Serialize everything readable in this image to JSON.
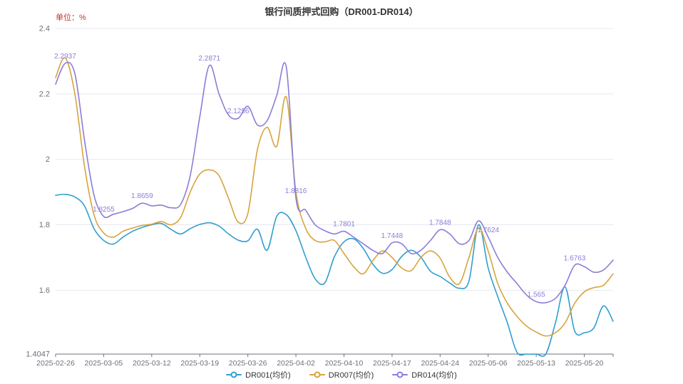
{
  "header": {
    "title": "银行间质押式回购（DR001-DR014）",
    "unit_label": "单位：%"
  },
  "legend": [
    {
      "label": "DR001(均价)",
      "color": "#2f9fd0"
    },
    {
      "label": "DR007(均价)",
      "color": "#d8a33e"
    },
    {
      "label": "DR014(均价)",
      "color": "#8b7dd8"
    }
  ],
  "colors": {
    "grid_line": "#e4e8f1",
    "axis_line": "#6e7079",
    "tick_label": "#6e7079",
    "annotation": "#8b7dd8",
    "title": "#333333",
    "unit": "#c23531"
  },
  "chart_data": {
    "type": "line",
    "title": "银行间质押式回购（DR001-DR014）",
    "xlabel": "",
    "ylabel": "单位：%",
    "ylim": [
      1.4047,
      2.4
    ],
    "y_ticks": [
      "1.4047",
      "1.6",
      "1.8",
      "2",
      "2.2",
      "2.4"
    ],
    "y_tick_values": [
      1.4047,
      1.6,
      1.8,
      2,
      2.2,
      2.4
    ],
    "grid": true,
    "legend_position": "bottom",
    "smooth": true,
    "x": [
      "2025-02-26",
      "2025-02-27",
      "2025-02-28",
      "2025-03-03",
      "2025-03-04",
      "2025-03-05",
      "2025-03-06",
      "2025-03-07",
      "2025-03-10",
      "2025-03-11",
      "2025-03-12",
      "2025-03-13",
      "2025-03-14",
      "2025-03-17",
      "2025-03-18",
      "2025-03-19",
      "2025-03-20",
      "2025-03-21",
      "2025-03-24",
      "2025-03-25",
      "2025-03-26",
      "2025-03-27",
      "2025-03-28",
      "2025-03-31",
      "2025-04-01",
      "2025-04-02",
      "2025-04-03",
      "2025-04-07",
      "2025-04-08",
      "2025-04-09",
      "2025-04-10",
      "2025-04-11",
      "2025-04-14",
      "2025-04-15",
      "2025-04-16",
      "2025-04-17",
      "2025-04-18",
      "2025-04-21",
      "2025-04-22",
      "2025-04-23",
      "2025-04-24",
      "2025-04-25",
      "2025-04-28",
      "2025-04-29",
      "2025-04-30",
      "2025-05-06",
      "2025-05-07",
      "2025-05-08",
      "2025-05-09",
      "2025-05-12",
      "2025-05-13",
      "2025-05-14",
      "2025-05-15",
      "2025-05-16",
      "2025-05-19",
      "2025-05-20",
      "2025-05-21",
      "2025-05-22",
      "2025-05-23"
    ],
    "x_tick_indices": [
      0,
      5,
      10,
      15,
      20,
      25,
      30,
      35,
      40,
      45,
      50,
      55
    ],
    "series": [
      {
        "name": "DR001(均价)",
        "color": "#2f9fd0",
        "values": [
          1.89,
          1.893,
          1.885,
          1.858,
          1.788,
          1.752,
          1.741,
          1.762,
          1.78,
          1.792,
          1.8,
          1.804,
          1.786,
          1.772,
          1.788,
          1.801,
          1.806,
          1.796,
          1.772,
          1.753,
          1.751,
          1.786,
          1.722,
          1.826,
          1.831,
          1.782,
          1.702,
          1.635,
          1.622,
          1.702,
          1.748,
          1.757,
          1.728,
          1.68,
          1.652,
          1.663,
          1.703,
          1.722,
          1.701,
          1.658,
          1.642,
          1.622,
          1.606,
          1.628,
          1.8,
          1.668,
          1.58,
          1.5,
          1.41,
          1.4047,
          1.405,
          1.405,
          1.5,
          1.61,
          1.475,
          1.47,
          1.485,
          1.552,
          1.505
        ]
      },
      {
        "name": "DR007(均价)",
        "color": "#d8a33e",
        "values": [
          2.25,
          2.31,
          2.2,
          1.98,
          1.83,
          1.775,
          1.762,
          1.78,
          1.79,
          1.798,
          1.802,
          1.81,
          1.8,
          1.822,
          1.9,
          1.955,
          1.968,
          1.95,
          1.88,
          1.808,
          1.835,
          2.03,
          2.098,
          2.04,
          2.19,
          1.9,
          1.79,
          1.752,
          1.748,
          1.752,
          1.712,
          1.672,
          1.65,
          1.69,
          1.72,
          1.7,
          1.668,
          1.66,
          1.7,
          1.72,
          1.698,
          1.64,
          1.62,
          1.7,
          1.79,
          1.72,
          1.62,
          1.56,
          1.52,
          1.49,
          1.472,
          1.46,
          1.47,
          1.5,
          1.56,
          1.595,
          1.608,
          1.615,
          1.65
        ]
      },
      {
        "name": "DR014(均价)",
        "color": "#8b7dd8",
        "values": [
          2.23,
          2.2937,
          2.262,
          2.06,
          1.89,
          1.8255,
          1.832,
          1.84,
          1.85,
          1.8659,
          1.858,
          1.86,
          1.852,
          1.862,
          1.95,
          2.13,
          2.2871,
          2.2,
          2.135,
          2.1256,
          2.162,
          2.105,
          2.118,
          2.195,
          2.282,
          1.8816,
          1.845,
          1.8,
          1.782,
          1.772,
          1.7801,
          1.762,
          1.742,
          1.722,
          1.712,
          1.7448,
          1.742,
          1.712,
          1.722,
          1.752,
          1.7848,
          1.772,
          1.742,
          1.752,
          1.812,
          1.7624,
          1.7,
          1.655,
          1.62,
          1.585,
          1.565,
          1.562,
          1.575,
          1.615,
          1.6763,
          1.672,
          1.655,
          1.662,
          1.692
        ]
      }
    ],
    "annotations": [
      {
        "index": 1,
        "text": "2.2937"
      },
      {
        "index": 5,
        "text": "1.8255"
      },
      {
        "index": 9,
        "text": "1.8659"
      },
      {
        "index": 16,
        "text": "2.2871"
      },
      {
        "index": 19,
        "text": "2.1256"
      },
      {
        "index": 25,
        "text": "1.8816"
      },
      {
        "index": 30,
        "text": "1.7801"
      },
      {
        "index": 35,
        "text": "1.7448"
      },
      {
        "index": 40,
        "text": "1.7848"
      },
      {
        "index": 45,
        "text": "1.7624"
      },
      {
        "index": 50,
        "text": "1.565"
      },
      {
        "index": 54,
        "text": "1.6763"
      }
    ]
  }
}
